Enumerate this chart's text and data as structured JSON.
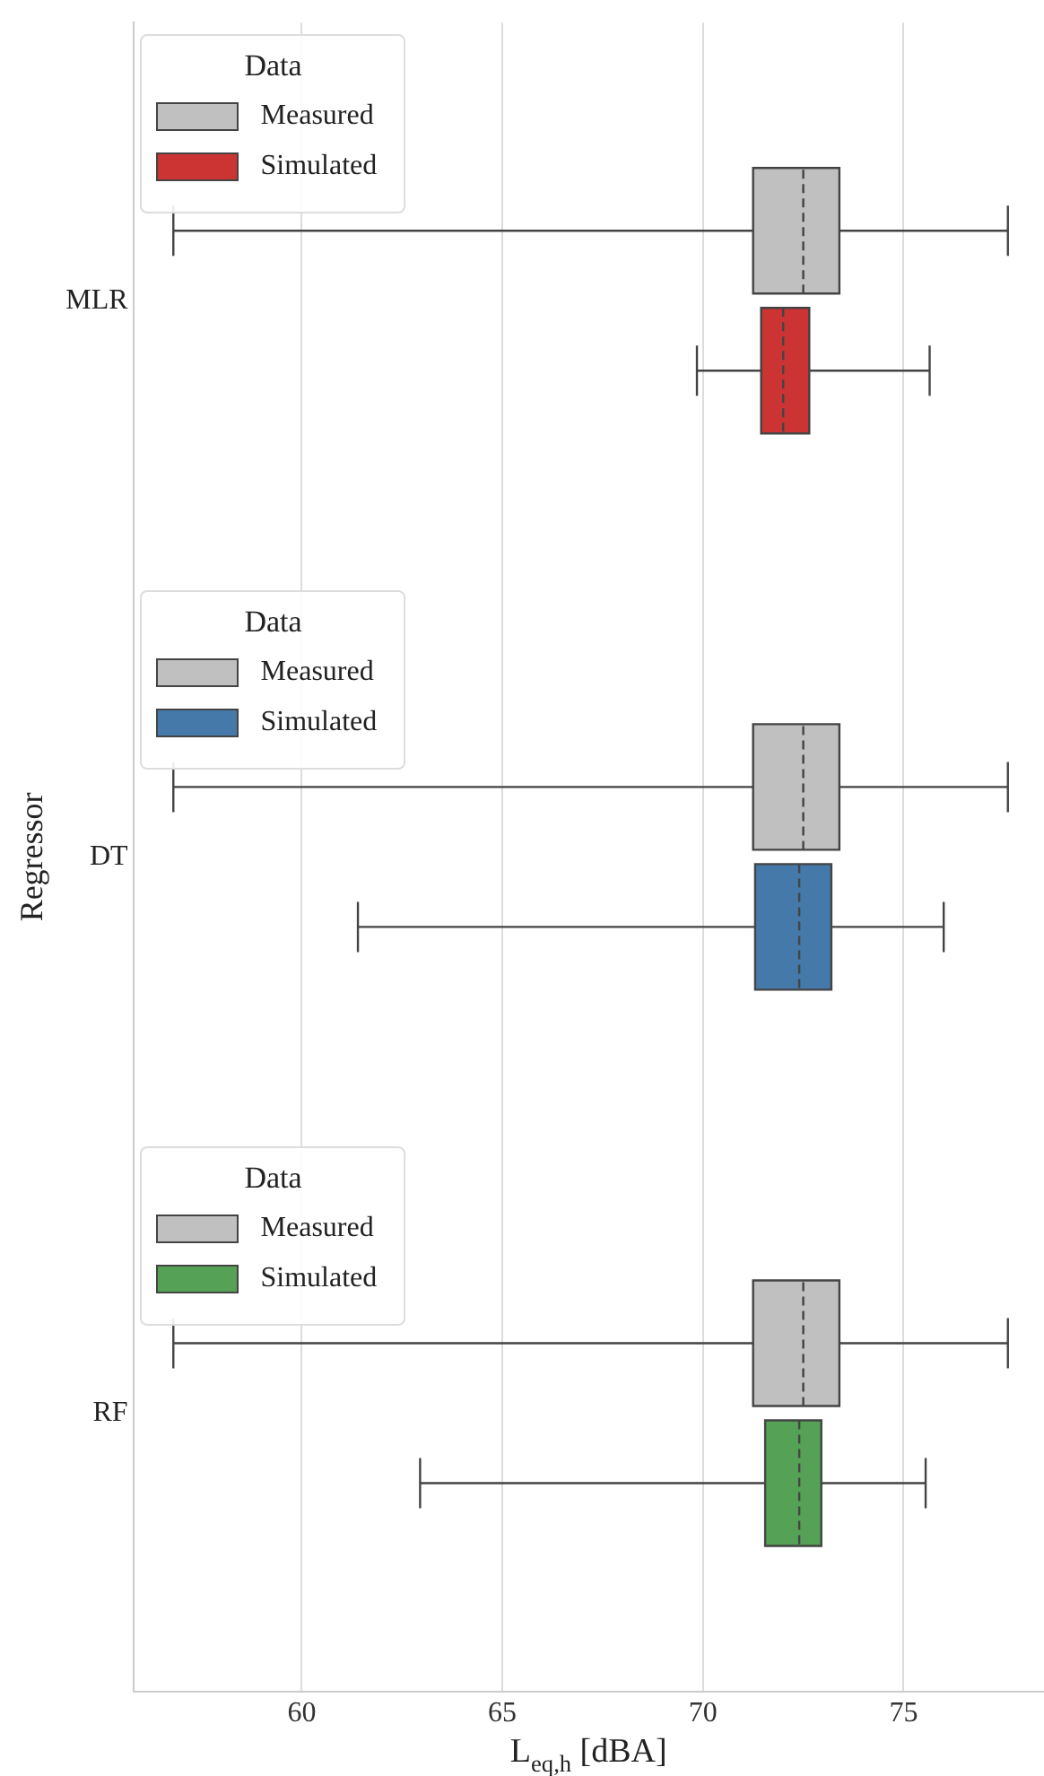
{
  "chart_data": {
    "type": "box",
    "orientation": "horizontal",
    "categories": [
      "MLR",
      "DT",
      "RF"
    ],
    "xlabel": "L$_{eq,h}$ [dBA]",
    "ylabel": "Regressor",
    "legend_title": "Data",
    "xlim": [
      55.8,
      78.5
    ],
    "xticks": [
      60,
      65,
      70,
      75
    ],
    "grid": "x",
    "legend": "top left",
    "series": [
      {
        "name": "Measured",
        "color": "#c0c0c0",
        "boxes": [
          {
            "low": 56.8,
            "q1": 71.25,
            "median": 72.5,
            "q3": 73.4,
            "high": 77.6
          },
          {
            "low": 56.8,
            "q1": 71.25,
            "median": 72.5,
            "q3": 73.4,
            "high": 77.6
          },
          {
            "low": 56.8,
            "q1": 71.25,
            "median": 72.5,
            "q3": 73.4,
            "high": 77.6
          }
        ]
      },
      {
        "name": "Simulated",
        "color": "#cc3333",
        "colors": [
          "#cc3333",
          "#4479a9",
          "#55a256"
        ],
        "boxes": [
          {
            "low": 69.85,
            "q1": 71.45,
            "median": 72.0,
            "q3": 72.65,
            "high": 75.65
          },
          {
            "low": 61.4,
            "q1": 71.3,
            "median": 72.4,
            "q3": 73.2,
            "high": 76.0
          },
          {
            "low": 62.95,
            "q1": 71.55,
            "median": 72.4,
            "q3": 72.95,
            "high": 75.55
          }
        ]
      }
    ]
  }
}
